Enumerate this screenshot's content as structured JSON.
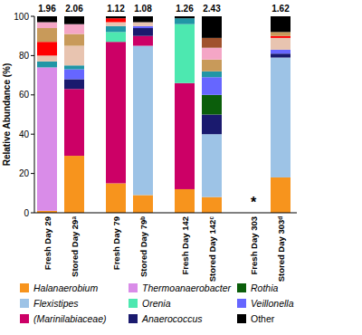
{
  "chart_data": {
    "type": "bar",
    "stacked": true,
    "y_label": "Relative Abundance (%)",
    "categories": [
      "Fresh Day 29",
      "Stored Day 29ᵃ",
      "Fresh Day 79",
      "Stored Day 79ᵇ",
      "Fresh Day 142",
      "Stored Day 142ᶜ",
      "Fresh Day 303",
      "Stored Day 303ᵈ"
    ],
    "diversity": [
      1.96,
      2.06,
      1.12,
      1.08,
      1.26,
      2.43,
      null,
      1.62
    ],
    "annotations": [
      {
        "text": "*",
        "category": 6
      }
    ],
    "ylim": [
      0,
      100
    ],
    "yticks": [
      0,
      20,
      40,
      60,
      80,
      100
    ],
    "grid": false,
    "legend": "bottom",
    "series": [
      {
        "name": "Halanaerobium",
        "color": "#f7941d",
        "values": [
          1,
          29,
          15,
          9,
          12,
          8,
          null,
          18
        ]
      },
      {
        "name": "Flexistipes",
        "color": "#9dc3e6",
        "values": [
          null,
          null,
          null,
          76,
          null,
          32,
          null,
          61
        ]
      },
      {
        "name": "(Marinilabiaceae)",
        "color": "#cc0066",
        "values": [
          null,
          34,
          72,
          5,
          54,
          null,
          null,
          null
        ]
      },
      {
        "name": "Thermoanaerobacter",
        "color": "#d98ce8",
        "values": [
          73,
          null,
          null,
          null,
          null,
          null,
          null,
          null
        ]
      },
      {
        "name": "Orenia",
        "color": "#4de8b0",
        "values": [
          null,
          null,
          5,
          null,
          30,
          null,
          null,
          null
        ]
      },
      {
        "name": "Anaerococcus",
        "color": "#1a1a6e",
        "values": [
          null,
          5,
          null,
          4,
          null,
          10,
          null,
          2
        ]
      },
      {
        "name": "Rothia",
        "color": "#0b5e0b",
        "values": [
          null,
          null,
          null,
          null,
          null,
          10,
          null,
          null
        ]
      },
      {
        "name": "Veillonella",
        "color": "#6666ff",
        "values": [
          null,
          5,
          null,
          1,
          null,
          9,
          null,
          2
        ]
      },
      {
        "name": null,
        "color": "#2196a6",
        "values": [
          3,
          2,
          3,
          null,
          3,
          3,
          null,
          null
        ]
      },
      {
        "name": null,
        "color": "#e8c4b0",
        "values": [
          3,
          10,
          2,
          2,
          null,
          null,
          null,
          6
        ]
      },
      {
        "name": null,
        "color": "#ff0000",
        "values": [
          7,
          null,
          2,
          null,
          null,
          null,
          null,
          1
        ]
      },
      {
        "name": null,
        "color": "#c89a5a",
        "values": [
          7,
          6,
          null,
          null,
          null,
          6,
          null,
          2
        ]
      },
      {
        "name": null,
        "color": "#f4a6c6",
        "values": [
          3,
          5,
          null,
          null,
          null,
          6,
          null,
          null
        ]
      },
      {
        "name": null,
        "color": "#a0522d",
        "values": [
          null,
          null,
          null,
          null,
          null,
          5,
          null,
          null
        ]
      },
      {
        "name": "Other",
        "color": "#000000",
        "values": [
          3,
          4,
          1,
          3,
          1,
          11,
          null,
          8
        ]
      }
    ]
  }
}
